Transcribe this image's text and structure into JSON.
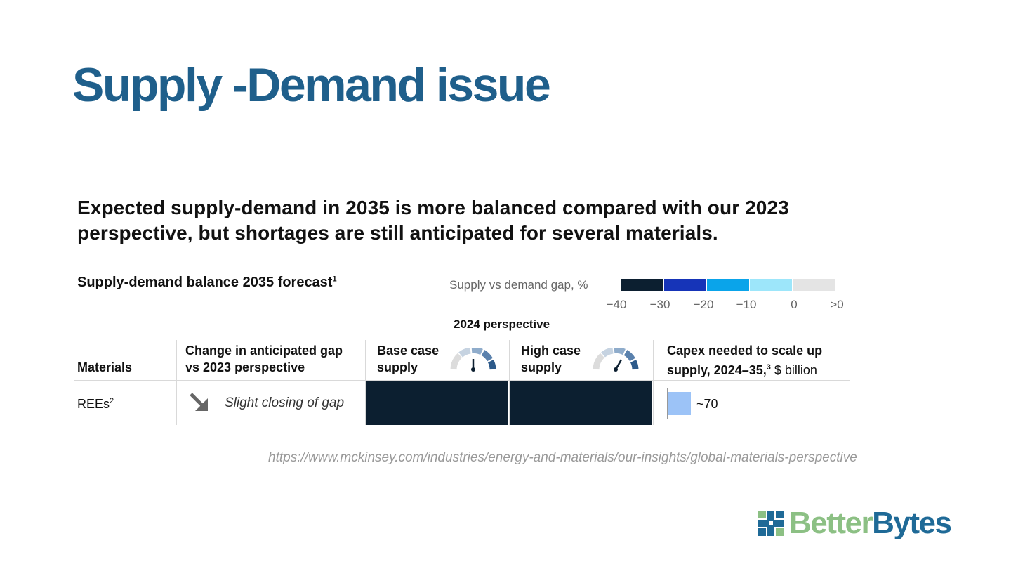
{
  "slide": {
    "title": "Supply -Demand issue",
    "headline": "Expected supply-demand in 2035 is more balanced compared with our 2023 perspective, but shortages are still anticipated for several materials.",
    "source_url": "https://www.mckinsey.com/industries/energy-and-materials/our-insights/global-materials-perspective",
    "logo": {
      "part1": "Better",
      "part2": "Bytes"
    }
  },
  "chart": {
    "title": "Supply-demand balance 2035 forecast",
    "title_sup": "1",
    "legend": {
      "label": "Supply vs demand gap, %",
      "ticks": [
        "−40",
        "−30",
        "−20",
        "−10",
        "0",
        ">0"
      ],
      "colors": [
        "#0c1f30",
        "#1634b8",
        "#0aa4ea",
        "#9de6fa",
        "#e4e4e4"
      ]
    },
    "perspective_label": "2024 perspective",
    "columns": {
      "materials": "Materials",
      "change_line1": "Change in anticipated gap",
      "change_line2": "vs 2023 perspective",
      "base_line1": "Base case",
      "base_line2": "supply",
      "high_line1": "High case",
      "high_line2": "supply",
      "capex_line1": "Capex needed to scale up",
      "capex_line2": "supply, 2024–35,",
      "capex_sup": "3",
      "capex_unit": " $ billion"
    },
    "rows": [
      {
        "material": "REEs",
        "material_sup": "2",
        "change": "Slight closing of gap",
        "base_color": "#0c1f30",
        "high_color": "#0c1f30",
        "capex": "~70",
        "capex_color": "#9cc3f7"
      }
    ]
  }
}
